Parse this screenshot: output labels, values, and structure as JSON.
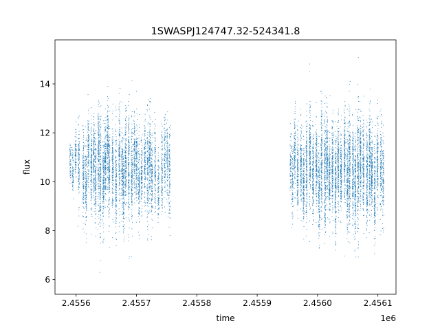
{
  "chart_data": {
    "type": "scatter",
    "title": "1SWASPJ124747.32-524341.8",
    "xlabel": "time",
    "ylabel": "flux",
    "x_offset_label": "1e6",
    "xlim": [
      2455565,
      2456130
    ],
    "ylim": [
      5.4,
      15.8
    ],
    "x_ticks": [
      2455600,
      2455700,
      2455800,
      2455900,
      2456000,
      2456100
    ],
    "x_tick_labels": [
      "2.4556",
      "2.4557",
      "2.4558",
      "2.4559",
      "2.4560",
      "2.4561"
    ],
    "y_ticks": [
      6,
      8,
      10,
      12,
      14
    ],
    "y_tick_labels": [
      "6",
      "8",
      "10",
      "12",
      "14"
    ],
    "grid": false,
    "marker_color": "#1f77b4",
    "series": [
      {
        "x": [
          2455589.8,
          2455593.8,
          2455598.7,
          2455604.0,
          2455611.6,
          2455616.0,
          2455619.9,
          2455624.7,
          2455628.8,
          2455631.6,
          2455636.6,
          2455639.6,
          2455644.8,
          2455648.0,
          2455651.7,
          2455654.4,
          2455660.1,
          2455665.6,
          2455671.3,
          2455675.9,
          2455678.3,
          2455681.8,
          2455686.7,
          2455691.9,
          2455696.2,
          2455699.8,
          2455703.8,
          2455708.1,
          2455713.3,
          2455718.1,
          2455721.6,
          2455725.2,
          2455730.5,
          2455735.9,
          2455741.7,
          2455746.3,
          2455750.7,
          2455754.4,
          2455955.0,
          2455958.2,
          2455961.9,
          2455966.7,
          2455971.9,
          2455976.4,
          2455981.3,
          2455987.0,
          2455992.1,
          2455997.7,
          2456002.0,
          2456006.2,
          2456011.8,
          2456015.2,
          2456019.3,
          2456024.4,
          2456029.4,
          2456033.8,
          2456038.5,
          2456044.4,
          2456049.2,
          2456052.6,
          2456058.1,
          2456062.0,
          2456066.5,
          2456070.5,
          2456075.5,
          2456081.4,
          2456085.9,
          2456089.6,
          2456094.3,
          2456098.9,
          2456104.5,
          2456108.3
        ],
        "y": [
          10.9,
          10.4,
          11.2,
          10.7,
          10.2,
          9.8,
          11.3,
          10.6,
          10.9,
          10.1,
          11.0,
          10.3,
          9.9,
          10.8,
          11.4,
          10.5,
          10.7,
          10.0,
          11.1,
          10.4,
          9.7,
          10.9,
          10.6,
          10.2,
          11.2,
          10.8,
          9.9,
          10.3,
          10.7,
          10.5,
          11.0,
          10.1,
          10.6,
          9.8,
          10.4,
          11.1,
          10.9,
          10.2,
          10.6,
          10.0,
          11.3,
          10.4,
          10.8,
          9.9,
          10.5,
          11.1,
          10.2,
          10.7,
          9.6,
          10.9,
          10.3,
          11.0,
          10.1,
          10.6,
          9.8,
          10.8,
          10.4,
          11.2,
          10.0,
          10.7,
          10.3,
          9.9,
          10.5,
          11.0,
          10.6,
          10.2,
          10.9,
          10.4,
          9.7,
          10.8,
          10.5,
          10.1
        ],
        "scatter_sd": [
          0.5,
          0.6,
          0.55,
          0.9,
          1.1,
          1.0,
          0.9,
          1.2,
          1.0,
          1.1,
          1.3,
          1.5,
          1.2,
          1.1,
          1.0,
          1.2,
          1.1,
          1.4,
          1.3,
          1.0,
          1.1,
          1.2,
          1.5,
          1.3,
          1.0,
          1.1,
          1.2,
          0.9,
          1.0,
          1.3,
          1.1,
          1.2,
          1.0,
          0.9,
          1.1,
          1.0,
          1.0,
          1.2,
          0.8,
          0.9,
          1.0,
          1.0,
          1.1,
          1.0,
          1.2,
          1.3,
          1.1,
          1.0,
          1.2,
          1.3,
          1.4,
          1.1,
          1.0,
          1.2,
          1.3,
          1.1,
          1.0,
          1.1,
          1.3,
          1.5,
          1.2,
          1.4,
          1.5,
          1.2,
          1.1,
          1.2,
          1.3,
          1.0,
          1.2,
          1.0,
          1.1,
          1.0
        ],
        "points_per_night": [
          60,
          70,
          90,
          120,
          150,
          140,
          130,
          160,
          170,
          160,
          180,
          200,
          170,
          160,
          150,
          170,
          160,
          180,
          170,
          150,
          160,
          170,
          180,
          160,
          150,
          140,
          150,
          130,
          140,
          160,
          150,
          140,
          120,
          110,
          120,
          110,
          100,
          110,
          80,
          100,
          130,
          150,
          160,
          170,
          180,
          200,
          190,
          180,
          170,
          200,
          210,
          190,
          180,
          200,
          210,
          190,
          180,
          190,
          200,
          210,
          190,
          200,
          210,
          190,
          180,
          190,
          200,
          180,
          170,
          160,
          150,
          120
        ]
      }
    ]
  }
}
